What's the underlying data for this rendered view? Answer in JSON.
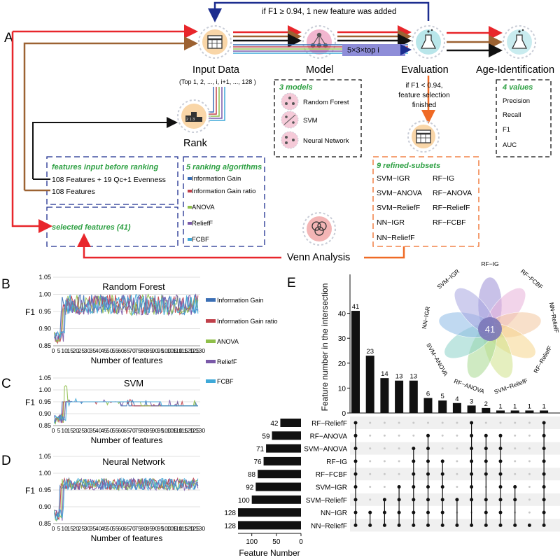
{
  "panel_labels": {
    "a": "A",
    "b": "B",
    "c": "C",
    "d": "D",
    "e": "E"
  },
  "workflow": {
    "loop_text": "if F1 ≥ 0.94,  1 new feature was added",
    "input_label": "Input Data",
    "input_sub": "(Top 1, 2, ..., i, i+1, ..., 128 )",
    "model_label": "Model",
    "repeat_label": "5×3×top i",
    "evaluation_label": "Evaluation",
    "age_label": "Age-Identification",
    "stop_text_1": "if F1 < 0.94,",
    "stop_text_2": "feature selection",
    "stop_text_3": "finished",
    "rank_label": "Rank",
    "rank_icon_text": "2 1 3",
    "venn_label": "Venn Analysis",
    "models_box": {
      "title": "3 models",
      "items": [
        "Random Forest",
        "SVM",
        "Neural Network"
      ]
    },
    "values_box": {
      "title": "4 values",
      "items": [
        "Precision",
        "Recall",
        "F1",
        "AUC"
      ]
    },
    "features_box": {
      "title": "features input before ranking",
      "line1": "108 Features + 19 Qc+1 Evenness",
      "line2": "108 Features"
    },
    "ranking_box": {
      "title": "5 ranking algorithms",
      "items": [
        "Information Gain",
        "Information Gain ratio",
        "ANOVA",
        "ReliefF",
        "FCBF"
      ]
    },
    "selected_box": {
      "title": "selected features (41)"
    },
    "subsets_box": {
      "title": "9 refined-subsets",
      "rows": [
        [
          "SVM−IGR",
          "RF−IG"
        ],
        [
          "SVM−ANOVA",
          "RF−ANOVA"
        ],
        [
          "SVM−ReliefF",
          "RF−ReliefF"
        ],
        [
          "NN−IGR",
          "RF−FCBF"
        ],
        [
          "NN−ReliefF",
          ""
        ]
      ]
    },
    "colors": {
      "red": "#e8262b",
      "brown": "#9c6232",
      "black": "#111111",
      "navy": "#1c2d8f",
      "orange": "#ef6a25",
      "green": "#2ea043"
    }
  },
  "line_charts": {
    "legend": [
      {
        "name": "Information Gain",
        "color": "#3b6fb5"
      },
      {
        "name": "Information Gain ratio",
        "color": "#c0404a"
      },
      {
        "name": "ANOVA",
        "color": "#8fbf4a"
      },
      {
        "name": "ReliefF",
        "color": "#7a59a8"
      },
      {
        "name": "FCBF",
        "color": "#3fa9d8"
      }
    ],
    "ylabel": "F1",
    "xlabel": "Number of features",
    "xticks": [
      "0",
      "5",
      "10",
      "15",
      "20",
      "25",
      "30",
      "35",
      "40",
      "45",
      "50",
      "55",
      "60",
      "65",
      "70",
      "75",
      "80",
      "85",
      "90",
      "95",
      "100",
      "105",
      "110",
      "115",
      "120",
      "125",
      "130"
    ],
    "yticks": [
      "0.85",
      "0.90",
      "0.95",
      "1.00",
      "1.05"
    ]
  },
  "chart_data": [
    {
      "type": "line",
      "title": "Random Forest",
      "xlabel": "Number of features",
      "ylabel": "F1",
      "xlim": [
        0,
        130
      ],
      "ylim": [
        0.85,
        1.05
      ],
      "series_names": [
        "Information Gain",
        "Information Gain ratio",
        "ANOVA",
        "ReliefF",
        "FCBF"
      ],
      "pattern": {
        "start": 0.87,
        "rise_at": 7,
        "plateau_mean": 0.975,
        "plateau_low": 0.94,
        "plateau_high": 1.0
      }
    },
    {
      "type": "line",
      "title": "SVM",
      "xlabel": "Number of features",
      "ylabel": "F1",
      "xlim": [
        0,
        130
      ],
      "ylim": [
        0.85,
        1.05
      ],
      "series_names": [
        "Information Gain",
        "Information Gain ratio",
        "ANOVA",
        "ReliefF",
        "FCBF"
      ],
      "pattern": {
        "start": 0.87,
        "rise_at": 8,
        "plateau_mean": 0.95,
        "final": 0.933,
        "anova_peak": 1.0
      }
    },
    {
      "type": "line",
      "title": "Neural Network",
      "xlabel": "Number of features",
      "ylabel": "F1",
      "xlim": [
        0,
        130
      ],
      "ylim": [
        0.85,
        1.05
      ],
      "series_names": [
        "Information Gain",
        "Information Gain ratio",
        "ANOVA",
        "ReliefF",
        "FCBF"
      ],
      "pattern": {
        "start": 0.87,
        "rise_at": 6,
        "plateau_mean": 0.965,
        "plateau_low": 0.95,
        "plateau_high": 0.985
      }
    },
    {
      "type": "bar",
      "title": "",
      "ylabel": "Feature number in the intersection",
      "categories": [
        "1",
        "2",
        "3",
        "4",
        "5",
        "6",
        "7",
        "8",
        "9",
        "10",
        "11",
        "12",
        "13",
        "14"
      ],
      "values": [
        41,
        23,
        14,
        13,
        13,
        6,
        5,
        4,
        3,
        2,
        1,
        1,
        1,
        1
      ],
      "ylim": [
        0,
        50
      ],
      "yticks": [
        0,
        10,
        20,
        30,
        40
      ]
    },
    {
      "type": "bar",
      "orientation": "horizontal",
      "xlabel": "Feature Number",
      "categories": [
        "RF−ReliefF",
        "RF−ANOVA",
        "SVM−ANOVA",
        "RF−IG",
        "RF−FCBF",
        "SVM−IGR",
        "SVM−ReliefF",
        "NN−IGR",
        "NN−ReliefF"
      ],
      "values": [
        42,
        59,
        71,
        76,
        88,
        92,
        100,
        128,
        128
      ],
      "xticks": [
        100,
        50,
        0
      ]
    }
  ],
  "upset": {
    "sets": [
      "RF−ReliefF",
      "RF−ANOVA",
      "SVM−ANOVA",
      "RF−IG",
      "RF−FCBF",
      "SVM−IGR",
      "SVM−ReliefF",
      "NN−IGR",
      "NN−ReliefF"
    ],
    "intersections": [
      [
        0,
        1,
        2,
        3,
        4,
        5,
        6,
        7,
        8
      ],
      [
        7,
        8
      ],
      [
        6,
        7,
        8
      ],
      [
        5,
        6,
        7,
        8
      ],
      [
        2,
        3,
        4,
        5,
        6,
        7,
        8
      ],
      [
        1,
        2,
        3,
        4,
        5,
        6,
        7,
        8
      ],
      [
        3,
        4,
        5,
        6,
        7,
        8
      ],
      [
        6,
        8
      ],
      [
        0,
        1,
        2,
        3,
        4,
        5,
        6,
        8
      ],
      [
        1,
        2,
        3,
        4,
        6,
        7,
        8
      ],
      [
        1,
        2,
        3,
        4,
        5,
        6,
        7,
        8
      ],
      [
        5,
        6,
        8
      ],
      [
        8
      ],
      [
        0,
        1,
        2,
        3,
        4,
        5,
        6,
        7,
        8
      ]
    ],
    "venn_center": "41",
    "venn_petals": [
      "RF−IG",
      "RF−FCBF",
      "NN−ReliefF",
      "RF−ReliefF",
      "SVM−ReliefF",
      "RF−ANOVA",
      "SVM−ANOVA",
      "NN−IGR",
      "SVM−IGR"
    ],
    "venn_colors": [
      "#9b8ed6",
      "#e7b0d8",
      "#f2c79e",
      "#f5d58c",
      "#cfe28a",
      "#a8d88f",
      "#8dd1c9",
      "#8db9e6",
      "#a7a6e0"
    ]
  }
}
